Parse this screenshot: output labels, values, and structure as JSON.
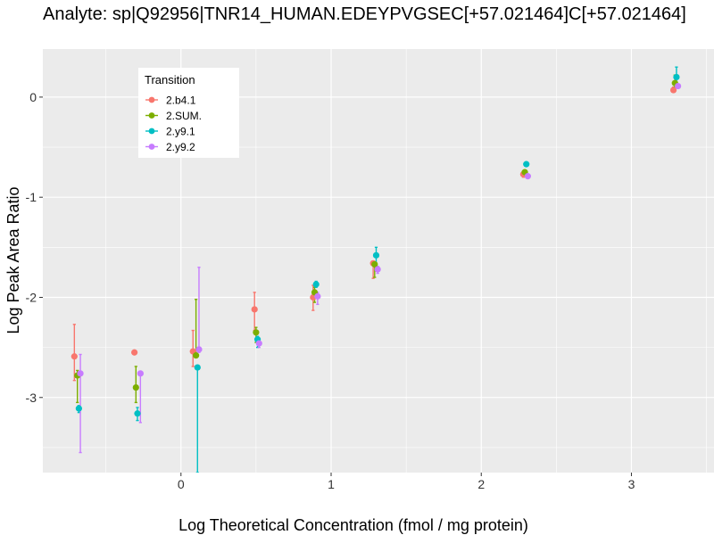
{
  "chart_data": {
    "type": "scatter",
    "title": "Analyte: sp|Q92956|TNR14_HUMAN.EDEYPVGSEC[+57.021464]C[+57.021464]",
    "xlabel": "Log Theoretical Concentration (fmol / mg protein)",
    "ylabel": "Log Peak Area Ratio",
    "xlim": [
      -0.92,
      3.55
    ],
    "ylim": [
      -3.75,
      0.48
    ],
    "x_ticks": [
      0,
      1,
      2,
      3
    ],
    "x_tick_labels": [
      "0",
      "1",
      "2",
      "3"
    ],
    "y_ticks": [
      0,
      -1,
      -2,
      -3
    ],
    "y_tick_labels": [
      "0",
      "-1",
      "-2",
      "-3"
    ],
    "grid": true,
    "panel_background": "#ebebeb",
    "legend": {
      "title": "Transition",
      "position": "top-left"
    },
    "series": [
      {
        "name": "2.b4.1",
        "color": "#F8766D",
        "points": [
          {
            "x": -0.71,
            "y": -2.59,
            "lo": -2.83,
            "hi": -2.27
          },
          {
            "x": -0.31,
            "y": -2.55,
            "lo": -2.55,
            "hi": -2.55
          },
          {
            "x": 0.08,
            "y": -2.54,
            "lo": -2.69,
            "hi": -2.33
          },
          {
            "x": 0.49,
            "y": -2.12,
            "lo": -2.33,
            "hi": -1.95
          },
          {
            "x": 0.88,
            "y": -2.0,
            "lo": -2.13,
            "hi": -1.88
          },
          {
            "x": 1.28,
            "y": -1.66,
            "lo": -1.81,
            "hi": -1.64
          },
          {
            "x": 2.28,
            "y": -0.77,
            "lo": -0.8,
            "hi": -0.74
          },
          {
            "x": 3.28,
            "y": 0.07,
            "lo": 0.05,
            "hi": 0.1
          }
        ]
      },
      {
        "name": "2.SUM.",
        "color": "#7CAE00",
        "points": [
          {
            "x": -0.69,
            "y": -2.78,
            "lo": -3.05,
            "hi": -2.73
          },
          {
            "x": -0.3,
            "y": -2.9,
            "lo": -3.05,
            "hi": -2.69
          },
          {
            "x": 0.1,
            "y": -2.58,
            "lo": -2.6,
            "hi": -2.02
          },
          {
            "x": 0.5,
            "y": -2.35,
            "lo": -2.45,
            "hi": -2.3
          },
          {
            "x": 0.89,
            "y": -1.95,
            "lo": -2.05,
            "hi": -1.9
          },
          {
            "x": 1.29,
            "y": -1.67,
            "lo": -1.8,
            "hi": -1.65
          },
          {
            "x": 2.29,
            "y": -0.75,
            "lo": -0.78,
            "hi": -0.73
          },
          {
            "x": 3.29,
            "y": 0.14,
            "lo": 0.1,
            "hi": 0.22
          }
        ]
      },
      {
        "name": "2.y9.1",
        "color": "#00BFC4",
        "points": [
          {
            "x": -0.68,
            "y": -3.11,
            "lo": -3.15,
            "hi": -3.08
          },
          {
            "x": -0.29,
            "y": -3.16,
            "lo": -3.23,
            "hi": -3.1
          },
          {
            "x": 0.11,
            "y": -2.7,
            "lo": -3.75,
            "hi": -2.68
          },
          {
            "x": 0.51,
            "y": -2.42,
            "lo": -2.5,
            "hi": -2.39
          },
          {
            "x": 0.9,
            "y": -1.87,
            "lo": -1.9,
            "hi": -1.84
          },
          {
            "x": 1.3,
            "y": -1.58,
            "lo": -1.72,
            "hi": -1.5
          },
          {
            "x": 2.3,
            "y": -0.67,
            "lo": -0.69,
            "hi": -0.66
          },
          {
            "x": 3.3,
            "y": 0.2,
            "lo": 0.12,
            "hi": 0.3
          }
        ]
      },
      {
        "name": "2.y9.2",
        "color": "#C77CFF",
        "points": [
          {
            "x": -0.67,
            "y": -2.76,
            "lo": -3.55,
            "hi": -2.57
          },
          {
            "x": -0.27,
            "y": -2.76,
            "lo": -3.25,
            "hi": -2.75
          },
          {
            "x": 0.12,
            "y": -2.52,
            "lo": -2.55,
            "hi": -1.7
          },
          {
            "x": 0.52,
            "y": -2.46,
            "lo": -2.5,
            "hi": -2.43
          },
          {
            "x": 0.91,
            "y": -1.99,
            "lo": -2.07,
            "hi": -1.95
          },
          {
            "x": 1.31,
            "y": -1.72,
            "lo": -1.76,
            "hi": -1.69
          },
          {
            "x": 2.31,
            "y": -0.79,
            "lo": -0.81,
            "hi": -0.77
          },
          {
            "x": 3.31,
            "y": 0.11,
            "lo": 0.09,
            "hi": 0.13
          }
        ]
      }
    ]
  }
}
